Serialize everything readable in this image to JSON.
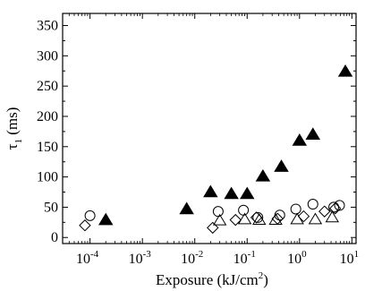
{
  "chart_data": {
    "type": "scatter",
    "xlabel": "Exposure (kJ/cm²)",
    "ylabel": "τ1 (ms)",
    "xscale": "log",
    "xlim": [
      3e-05,
      12
    ],
    "ylim": [
      -10,
      370
    ],
    "grid": false,
    "legend": "none",
    "x_ticks": [
      {
        "value": 0.0001,
        "base": "10",
        "exp": "-4"
      },
      {
        "value": 0.001,
        "base": "10",
        "exp": "-3"
      },
      {
        "value": 0.01,
        "base": "10",
        "exp": "-2"
      },
      {
        "value": 0.1,
        "base": "10",
        "exp": "-1"
      },
      {
        "value": 1,
        "base": "10",
        "exp": "0"
      },
      {
        "value": 10,
        "base": "10",
        "exp": "1"
      }
    ],
    "y_ticks": [
      "0",
      "50",
      "100",
      "150",
      "200",
      "250",
      "300",
      "350"
    ],
    "series": [
      {
        "marker": "filled-triangle",
        "points": [
          {
            "x": 0.0002,
            "y": 29
          },
          {
            "x": 0.007,
            "y": 47
          },
          {
            "x": 0.02,
            "y": 75
          },
          {
            "x": 0.05,
            "y": 72
          },
          {
            "x": 0.1,
            "y": 72
          },
          {
            "x": 0.2,
            "y": 101
          },
          {
            "x": 0.45,
            "y": 117
          },
          {
            "x": 1.0,
            "y": 160
          },
          {
            "x": 1.8,
            "y": 170
          },
          {
            "x": 7.5,
            "y": 274
          }
        ]
      },
      {
        "marker": "open-circle",
        "points": [
          {
            "x": 0.0001,
            "y": 36
          },
          {
            "x": 0.028,
            "y": 43
          },
          {
            "x": 0.085,
            "y": 45
          },
          {
            "x": 0.16,
            "y": 33
          },
          {
            "x": 0.42,
            "y": 37
          },
          {
            "x": 0.85,
            "y": 47
          },
          {
            "x": 1.8,
            "y": 55
          },
          {
            "x": 4.5,
            "y": 50
          },
          {
            "x": 5.8,
            "y": 53
          }
        ]
      },
      {
        "marker": "open-triangle",
        "points": [
          {
            "x": 0.03,
            "y": 28
          },
          {
            "x": 0.09,
            "y": 30
          },
          {
            "x": 0.17,
            "y": 29
          },
          {
            "x": 0.35,
            "y": 29
          },
          {
            "x": 0.9,
            "y": 30
          },
          {
            "x": 2.0,
            "y": 30
          },
          {
            "x": 4.2,
            "y": 33
          }
        ]
      },
      {
        "marker": "open-diamond",
        "points": [
          {
            "x": 8e-05,
            "y": 20
          },
          {
            "x": 0.022,
            "y": 16
          },
          {
            "x": 0.06,
            "y": 29
          },
          {
            "x": 0.15,
            "y": 33
          },
          {
            "x": 0.38,
            "y": 31
          },
          {
            "x": 1.2,
            "y": 35
          },
          {
            "x": 3.0,
            "y": 43
          },
          {
            "x": 4.8,
            "y": 48
          }
        ]
      }
    ]
  }
}
